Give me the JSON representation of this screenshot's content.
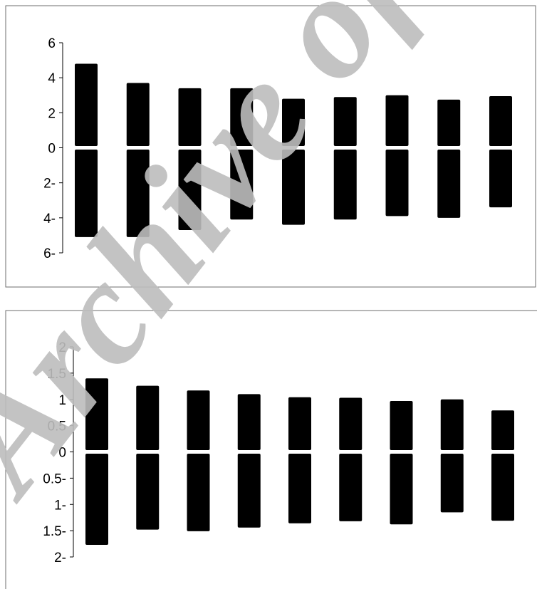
{
  "watermark": {
    "text": "Archive of",
    "color": "#bdbdbd"
  },
  "colors": {
    "bar": "#000000",
    "axis": "#000000",
    "frame": "#6e6e6e"
  },
  "chart_data": [
    {
      "type": "bar",
      "subtype": "diverging",
      "ylim": [
        -6,
        6
      ],
      "yticks": [
        6,
        4,
        2,
        0,
        -2,
        -4,
        -6
      ],
      "ytick_labels": [
        "6",
        "4",
        "2",
        "0",
        "2-",
        "4-",
        "6-"
      ],
      "grid": false,
      "legend": "none",
      "series": [
        {
          "values": [
            4.8,
            3.7,
            3.4,
            3.4,
            2.8,
            2.9,
            3.0,
            2.75,
            2.95
          ]
        },
        {
          "values": [
            -5.1,
            -5.1,
            -4.7,
            -4.1,
            -4.4,
            -4.1,
            -3.9,
            -4.0,
            -3.4
          ]
        }
      ]
    },
    {
      "type": "bar",
      "subtype": "diverging",
      "ylim": [
        -2,
        2
      ],
      "yticks": [
        2,
        1.5,
        1,
        0.5,
        0,
        -0.5,
        -1,
        -1.5,
        -2
      ],
      "ytick_labels": [
        "2",
        "1.5",
        "1",
        "0.5",
        "0",
        "0.5-",
        "1-",
        "1.5-",
        "2-"
      ],
      "grid": false,
      "legend": "none",
      "series": [
        {
          "values": [
            1.4,
            1.26,
            1.17,
            1.1,
            1.04,
            1.03,
            0.97,
            1.0,
            0.79
          ]
        },
        {
          "values": [
            -1.77,
            -1.48,
            -1.51,
            -1.44,
            -1.36,
            -1.32,
            -1.38,
            -1.15,
            -1.31
          ]
        }
      ]
    }
  ]
}
